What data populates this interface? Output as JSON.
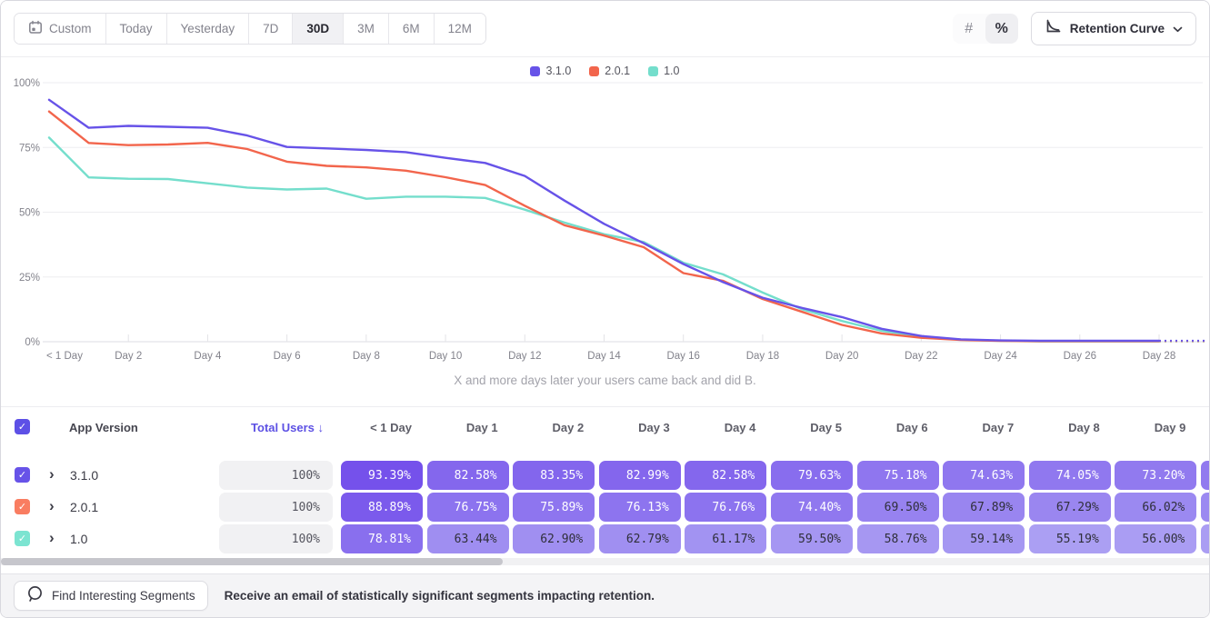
{
  "toolbar": {
    "date_ranges": [
      {
        "label": "Custom",
        "icon": "calendar",
        "selected": false
      },
      {
        "label": "Today",
        "selected": false
      },
      {
        "label": "Yesterday",
        "selected": false
      },
      {
        "label": "7D",
        "selected": false
      },
      {
        "label": "30D",
        "selected": true
      },
      {
        "label": "3M",
        "selected": false
      },
      {
        "label": "6M",
        "selected": false
      },
      {
        "label": "12M",
        "selected": false
      }
    ],
    "value_modes": [
      {
        "name": "absolute",
        "glyph": "#",
        "selected": false
      },
      {
        "name": "percent",
        "glyph": "%",
        "selected": true
      }
    ],
    "chart_type_label": "Retention Curve"
  },
  "chart_data": {
    "type": "line",
    "subtitle": "X and more days later your users came back and did B.",
    "ylim": [
      0,
      100
    ],
    "grid": true,
    "legend_position": "top-center",
    "dotted_tail": true,
    "y_ticks": [
      {
        "value": 0,
        "label": "0%"
      },
      {
        "value": 25,
        "label": "25%"
      },
      {
        "value": 50,
        "label": "50%"
      },
      {
        "value": 75,
        "label": "75%"
      },
      {
        "value": 100,
        "label": "100%"
      }
    ],
    "x_ticks": [
      {
        "day": 0,
        "label": "< 1 Day"
      },
      {
        "day": 2,
        "label": "Day 2"
      },
      {
        "day": 4,
        "label": "Day 4"
      },
      {
        "day": 6,
        "label": "Day 6"
      },
      {
        "day": 8,
        "label": "Day 8"
      },
      {
        "day": 10,
        "label": "Day 10"
      },
      {
        "day": 12,
        "label": "Day 12"
      },
      {
        "day": 14,
        "label": "Day 14"
      },
      {
        "day": 16,
        "label": "Day 16"
      },
      {
        "day": 18,
        "label": "Day 18"
      },
      {
        "day": 20,
        "label": "Day 20"
      },
      {
        "day": 22,
        "label": "Day 22"
      },
      {
        "day": 24,
        "label": "Day 24"
      },
      {
        "day": 26,
        "label": "Day 26"
      },
      {
        "day": 28,
        "label": "Day 28"
      }
    ],
    "series": [
      {
        "name": "3.1.0",
        "color": "#6753E8",
        "values": [
          93.39,
          82.58,
          83.35,
          82.99,
          82.58,
          79.63,
          75.18,
          74.63,
          74.05,
          73.2,
          71.0,
          69.0,
          64.0,
          54.5,
          45.5,
          38.0,
          30.0,
          23.0,
          17.0,
          13.0,
          9.5,
          5.0,
          2.2,
          0.9,
          0.5,
          0.4,
          0.4,
          0.4,
          0.4
        ]
      },
      {
        "name": "2.0.1",
        "color": "#F2654C",
        "values": [
          88.89,
          76.75,
          75.89,
          76.13,
          76.76,
          74.4,
          69.5,
          67.89,
          67.29,
          66.02,
          63.5,
          60.5,
          52.5,
          45.0,
          41.0,
          36.5,
          26.5,
          23.5,
          16.5,
          11.5,
          6.5,
          3.2,
          1.5,
          0.7,
          0.3,
          0.2,
          0.2,
          0.2,
          0.2
        ]
      },
      {
        "name": "1.0",
        "color": "#74DECC",
        "values": [
          78.81,
          63.44,
          62.9,
          62.79,
          61.17,
          59.5,
          58.76,
          59.14,
          55.19,
          56.0,
          56.0,
          55.5,
          51.0,
          46.0,
          41.5,
          38.5,
          30.5,
          26.0,
          19.0,
          12.5,
          8.0,
          4.2,
          2.0,
          0.8,
          0.3,
          0.1,
          0.1,
          0.1,
          0.1
        ]
      }
    ]
  },
  "table": {
    "header": {
      "app_version": "App Version",
      "total_users": "Total Users",
      "sort_arrow": "↓",
      "day_columns": [
        "< 1 Day",
        "Day 1",
        "Day 2",
        "Day 3",
        "Day 4",
        "Day 5",
        "Day 6",
        "Day 7",
        "Day 8",
        "Day 9"
      ]
    },
    "rows": [
      {
        "version": "3.1.0",
        "checkbox_color": "#6753E8",
        "total": "100%",
        "values": [
          93.39,
          82.58,
          83.35,
          82.99,
          82.58,
          79.63,
          75.18,
          74.63,
          74.05,
          73.2
        ]
      },
      {
        "version": "2.0.1",
        "checkbox_color": "#F97D61",
        "total": "100%",
        "values": [
          88.89,
          76.75,
          75.89,
          76.13,
          76.76,
          74.4,
          69.5,
          67.89,
          67.29,
          66.02
        ]
      },
      {
        "version": "1.0",
        "checkbox_color": "#7CE4D1",
        "total": "100%",
        "values": [
          78.81,
          63.44,
          62.9,
          62.79,
          61.17,
          59.5,
          58.76,
          59.14,
          55.19,
          56.0
        ]
      }
    ]
  },
  "footer": {
    "button_label": "Find Interesting Segments",
    "message": "Receive an email of statistically significant segments impacting retention."
  },
  "colors": {
    "accent_purple": "#6753E8",
    "pill_dark": "#7450EB",
    "pill_light": "#AB9FF3",
    "pill_text_dark": "#2F2F3A",
    "header_checkbox": "#5D50E6"
  }
}
